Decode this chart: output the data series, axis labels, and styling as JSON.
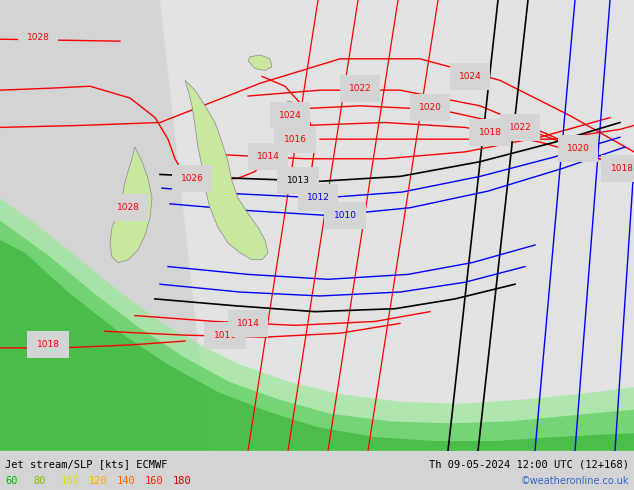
{
  "title_left": "Jet stream/SLP [kts] ECMWF",
  "title_right": "Th 09-05-2024 12:00 UTC (12+168)",
  "copyright": "©weatheronline.co.uk",
  "legend_values": [
    60,
    80,
    100,
    120,
    140,
    160,
    180
  ],
  "legend_colors": [
    "#00bb00",
    "#88bb00",
    "#dddd00",
    "#ffaa00",
    "#ff6600",
    "#ff2200",
    "#cc0000"
  ],
  "bg_color": "#d4d4d4",
  "nz_color": "#c8e8a0",
  "slp_color_red": "#ff0000",
  "slp_color_black": "#000000",
  "slp_color_blue": "#0000ff",
  "figsize": [
    6.34,
    4.9
  ],
  "dpi": 100
}
